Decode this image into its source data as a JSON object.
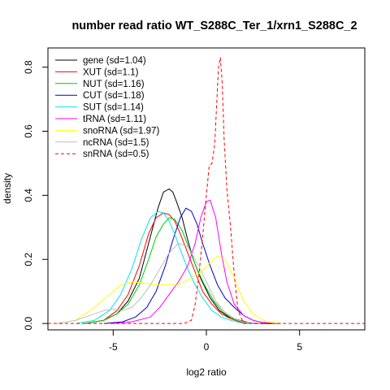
{
  "chart_data": {
    "type": "line",
    "title": "number read ratio WT_S288C_Ter_1/xrn1_S288C_2",
    "xlabel": "log2 ratio",
    "ylabel": "density",
    "xlim": [
      -8.5,
      8.5
    ],
    "ylim": [
      -0.02,
      0.86
    ],
    "xticks": [
      -5,
      0,
      5
    ],
    "xtick_labels": [
      "-5",
      "0",
      "5"
    ],
    "yticks": [
      0.0,
      0.2,
      0.4,
      0.6,
      0.8
    ],
    "ytick_labels": [
      "0.0",
      "0.2",
      "0.4",
      "0.6",
      "0.8"
    ],
    "grid": false,
    "legend_position": "top-left",
    "series": [
      {
        "name": "gene (sd=1.04)",
        "color": "#000000",
        "dash": "solid",
        "x": [
          -6.5,
          -5.5,
          -4.8,
          -4.2,
          -3.6,
          -3.1,
          -2.6,
          -2.3,
          -2.0,
          -1.8,
          -1.6,
          -1.3,
          -1.0,
          -0.7,
          -0.3,
          0.2,
          0.7,
          1.2,
          1.8,
          2.5,
          3.5
        ],
        "y": [
          0.0,
          0.01,
          0.03,
          0.07,
          0.14,
          0.25,
          0.36,
          0.41,
          0.42,
          0.41,
          0.38,
          0.33,
          0.26,
          0.2,
          0.14,
          0.08,
          0.04,
          0.02,
          0.01,
          0.0,
          0.0
        ]
      },
      {
        "name": "XUT (sd=1.1)",
        "color": "#ff0000",
        "dash": "solid",
        "x": [
          -6.5,
          -5.5,
          -4.8,
          -4.2,
          -3.6,
          -3.1,
          -2.7,
          -2.3,
          -2.0,
          -1.7,
          -1.4,
          -1.0,
          -0.6,
          -0.2,
          0.3,
          0.8,
          1.3,
          1.8,
          2.5,
          3.5
        ],
        "y": [
          0.0,
          0.01,
          0.04,
          0.09,
          0.18,
          0.28,
          0.33,
          0.345,
          0.34,
          0.32,
          0.28,
          0.22,
          0.16,
          0.1,
          0.06,
          0.03,
          0.015,
          0.005,
          0.0,
          0.0
        ]
      },
      {
        "name": "NUT (sd=1.16)",
        "color": "#00cc00",
        "dash": "solid",
        "x": [
          -6.5,
          -5.5,
          -4.8,
          -4.2,
          -3.6,
          -3.1,
          -2.7,
          -2.3,
          -2.0,
          -1.7,
          -1.3,
          -0.9,
          -0.5,
          -0.1,
          0.4,
          0.9,
          1.4,
          2.0,
          2.7,
          3.5
        ],
        "y": [
          0.0,
          0.01,
          0.03,
          0.06,
          0.12,
          0.2,
          0.27,
          0.31,
          0.33,
          0.325,
          0.29,
          0.23,
          0.17,
          0.12,
          0.07,
          0.035,
          0.015,
          0.005,
          0.0,
          0.0
        ]
      },
      {
        "name": "CUT (sd=1.18)",
        "color": "#0000cc",
        "dash": "solid",
        "x": [
          -5.5,
          -4.5,
          -3.8,
          -3.2,
          -2.7,
          -2.2,
          -1.8,
          -1.4,
          -1.1,
          -0.8,
          -0.5,
          -0.2,
          0.2,
          0.6,
          1.0,
          1.5,
          2.0,
          2.5,
          3.2,
          4.0
        ],
        "y": [
          0.0,
          0.005,
          0.02,
          0.05,
          0.1,
          0.18,
          0.26,
          0.33,
          0.36,
          0.35,
          0.31,
          0.25,
          0.18,
          0.12,
          0.08,
          0.05,
          0.025,
          0.01,
          0.0,
          0.0
        ]
      },
      {
        "name": "SUT (sd=1.14)",
        "color": "#00e5e5",
        "dash": "solid",
        "x": [
          -7.0,
          -6.0,
          -5.2,
          -4.6,
          -4.0,
          -3.5,
          -3.0,
          -2.6,
          -2.3,
          -2.0,
          -1.7,
          -1.4,
          -1.0,
          -0.6,
          -0.2,
          0.3,
          0.8,
          1.3,
          2.0,
          3.0
        ],
        "y": [
          0.0,
          0.01,
          0.04,
          0.09,
          0.17,
          0.26,
          0.33,
          0.35,
          0.345,
          0.32,
          0.28,
          0.23,
          0.17,
          0.12,
          0.08,
          0.04,
          0.02,
          0.01,
          0.0,
          0.0
        ]
      },
      {
        "name": "tRNA (sd=1.11)",
        "color": "#ff00ff",
        "dash": "solid",
        "x": [
          -5.0,
          -4.0,
          -3.0,
          -2.5,
          -2.0,
          -1.5,
          -1.0,
          -0.6,
          -0.3,
          0.0,
          0.2,
          0.5,
          0.8,
          1.1,
          1.5,
          2.0,
          2.5,
          3.0,
          4.0
        ],
        "y": [
          0.0,
          0.005,
          0.02,
          0.05,
          0.09,
          0.13,
          0.18,
          0.25,
          0.33,
          0.38,
          0.385,
          0.33,
          0.22,
          0.13,
          0.06,
          0.025,
          0.01,
          0.003,
          0.0
        ]
      },
      {
        "name": "snoRNA (sd=1.97)",
        "color": "#ffff00",
        "dash": "solid",
        "x": [
          -8.0,
          -7.0,
          -6.0,
          -5.2,
          -4.6,
          -4.0,
          -3.3,
          -2.6,
          -2.0,
          -1.5,
          -0.9,
          -0.3,
          0.2,
          0.6,
          1.0,
          1.5,
          2.0,
          2.5,
          3.2,
          4.0
        ],
        "y": [
          0.0,
          0.01,
          0.05,
          0.09,
          0.12,
          0.13,
          0.125,
          0.12,
          0.12,
          0.12,
          0.14,
          0.16,
          0.19,
          0.21,
          0.2,
          0.14,
          0.07,
          0.03,
          0.005,
          0.0
        ]
      },
      {
        "name": "ncRNA (sd=1.5)",
        "color": "#bebebe",
        "dash": "solid",
        "x": [
          -8.0,
          -7.0,
          -6.0,
          -5.5,
          -5.0,
          -4.5,
          -4.0,
          -3.5,
          -3.0,
          -2.5,
          -2.0,
          -1.5,
          -1.0,
          -0.5,
          0.0,
          0.5,
          1.0,
          1.5,
          2.0,
          3.0
        ],
        "y": [
          0.0,
          0.01,
          0.03,
          0.04,
          0.045,
          0.04,
          0.05,
          0.08,
          0.12,
          0.17,
          0.22,
          0.25,
          0.24,
          0.19,
          0.13,
          0.07,
          0.035,
          0.015,
          0.005,
          0.0
        ]
      },
      {
        "name": "snRNA (sd=0.5)",
        "color": "#ff0000",
        "dash": "dashed",
        "x": [
          -8.5,
          -1.2,
          -0.8,
          -0.6,
          -0.4,
          -0.2,
          0.0,
          0.15,
          0.3,
          0.45,
          0.55,
          0.65,
          0.75,
          0.85,
          0.95,
          1.1,
          1.3,
          1.5,
          1.7,
          2.0,
          8.5
        ],
        "y": [
          0.0,
          0.0,
          0.01,
          0.06,
          0.15,
          0.27,
          0.4,
          0.49,
          0.5,
          0.56,
          0.68,
          0.8,
          0.83,
          0.75,
          0.58,
          0.42,
          0.3,
          0.15,
          0.04,
          0.0,
          0.0
        ]
      }
    ]
  }
}
